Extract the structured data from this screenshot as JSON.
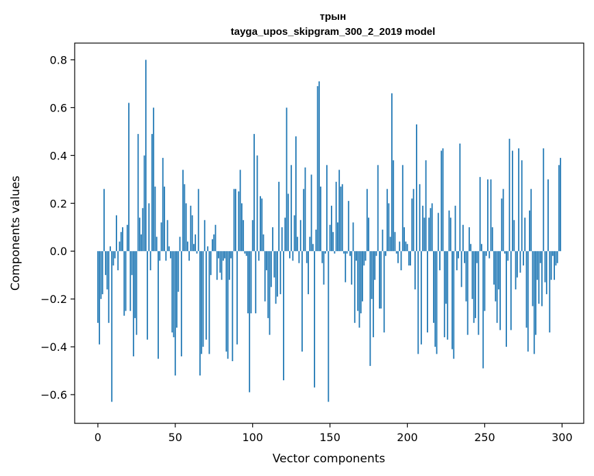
{
  "chart_data": {
    "type": "bar",
    "title": "трын",
    "subtitle": "tayga_upos_skipgram_300_2_2019 model",
    "xlabel": "Vector components",
    "ylabel": "Components values",
    "xlim": [
      -15,
      314
    ],
    "ylim": [
      -0.72,
      0.87
    ],
    "xticks": [
      0,
      50,
      100,
      150,
      200,
      250,
      300
    ],
    "xtick_labels": [
      "0",
      "50",
      "100",
      "150",
      "200",
      "250",
      "300"
    ],
    "yticks": [
      -0.6,
      -0.4,
      -0.2,
      0.0,
      0.2,
      0.4,
      0.6,
      0.8
    ],
    "ytick_labels": [
      "−0.6",
      "−0.4",
      "−0.2",
      "0.0",
      "0.2",
      "0.4",
      "0.6",
      "0.8"
    ],
    "grid": false,
    "bar_color": "#1f77b4",
    "values": [
      -0.3,
      -0.39,
      -0.2,
      -0.18,
      0.26,
      -0.1,
      -0.16,
      -0.3,
      0.02,
      -0.63,
      -0.06,
      -0.03,
      0.15,
      -0.08,
      0.04,
      0.08,
      0.1,
      -0.27,
      -0.25,
      0.11,
      0.62,
      -0.25,
      -0.1,
      -0.44,
      -0.28,
      -0.35,
      0.49,
      0.14,
      0.07,
      0.18,
      0.4,
      0.8,
      -0.37,
      0.2,
      -0.08,
      0.49,
      0.6,
      0.27,
      0.06,
      -0.45,
      -0.04,
      0.12,
      0.39,
      0.27,
      -0.04,
      0.13,
      0.02,
      -0.03,
      -0.34,
      -0.36,
      -0.52,
      -0.32,
      -0.17,
      0.06,
      -0.44,
      0.34,
      0.28,
      0.2,
      0.04,
      -0.04,
      0.19,
      0.15,
      0.03,
      0.07,
      -0.01,
      0.26,
      -0.52,
      -0.43,
      -0.4,
      0.13,
      -0.37,
      0.02,
      -0.43,
      -0.1,
      0.05,
      0.07,
      0.11,
      -0.12,
      -0.03,
      -0.09,
      -0.12,
      -0.04,
      -0.03,
      -0.42,
      -0.45,
      -0.12,
      -0.03,
      -0.46,
      0.26,
      0.26,
      -0.39,
      0.25,
      0.34,
      0.2,
      0.13,
      -0.01,
      -0.02,
      -0.26,
      -0.59,
      -0.26,
      0.13,
      0.49,
      -0.26,
      0.4,
      -0.04,
      0.23,
      0.22,
      0.07,
      -0.21,
      -0.08,
      -0.28,
      -0.35,
      -0.15,
      0.1,
      -0.11,
      -0.22,
      -0.19,
      0.29,
      -0.18,
      0.1,
      -0.54,
      0.14,
      0.6,
      0.24,
      -0.03,
      0.36,
      -0.04,
      0.15,
      0.48,
      0.06,
      -0.05,
      0.13,
      -0.42,
      0.26,
      0.35,
      -0.05,
      -0.18,
      0.06,
      0.32,
      0.03,
      -0.57,
      0.09,
      0.69,
      0.71,
      0.27,
      -0.05,
      -0.14,
      -0.01,
      0.36,
      -0.63,
      0.11,
      0.19,
      0.08,
      -0.01,
      0.29,
      0.12,
      0.34,
      0.27,
      0.28,
      -0.01,
      -0.13,
      -0.01,
      0.21,
      -0.02,
      -0.14,
      0.12,
      -0.3,
      -0.04,
      -0.25,
      -0.32,
      -0.26,
      -0.21,
      -0.06,
      -0.04,
      0.26,
      0.14,
      -0.48,
      -0.2,
      -0.36,
      -0.12,
      -0.02,
      0.36,
      -0.24,
      -0.24,
      0.09,
      -0.34,
      -0.02,
      0.26,
      0.2,
      0.06,
      0.66,
      0.38,
      0.08,
      -0.01,
      -0.05,
      0.04,
      -0.08,
      0.36,
      0.1,
      0.04,
      0.03,
      -0.06,
      -0.06,
      0.22,
      0.26,
      -0.16,
      0.53,
      -0.43,
      0.28,
      -0.39,
      0.19,
      0.14,
      0.38,
      -0.34,
      0.14,
      0.18,
      0.2,
      -0.3,
      -0.4,
      -0.43,
      0.16,
      -0.08,
      0.42,
      0.43,
      -0.36,
      -0.22,
      -0.37,
      0.17,
      0.14,
      -0.41,
      -0.45,
      0.19,
      -0.08,
      -0.03,
      0.45,
      -0.15,
      0.11,
      -0.05,
      -0.21,
      -0.35,
      0.1,
      0.03,
      -0.2,
      -0.3,
      -0.28,
      -0.05,
      -0.35,
      0.31,
      0.03,
      -0.49,
      -0.25,
      -0.02,
      0.3,
      -0.03,
      0.3,
      0.1,
      -0.14,
      -0.21,
      -0.3,
      -0.16,
      -0.33,
      0.22,
      0.26,
      -0.01,
      -0.4,
      -0.04,
      0.47,
      -0.33,
      0.42,
      0.13,
      -0.16,
      -0.11,
      0.43,
      -0.09,
      0.38,
      -0.06,
      0.14,
      -0.32,
      -0.42,
      0.17,
      0.26,
      -0.23,
      -0.43,
      -0.35,
      -0.12,
      -0.22,
      -0.05,
      -0.23,
      0.43,
      -0.13,
      -0.18,
      0.3,
      -0.34,
      -0.12,
      -0.02,
      -0.12,
      -0.06,
      -0.05,
      0.36,
      0.39
    ]
  }
}
